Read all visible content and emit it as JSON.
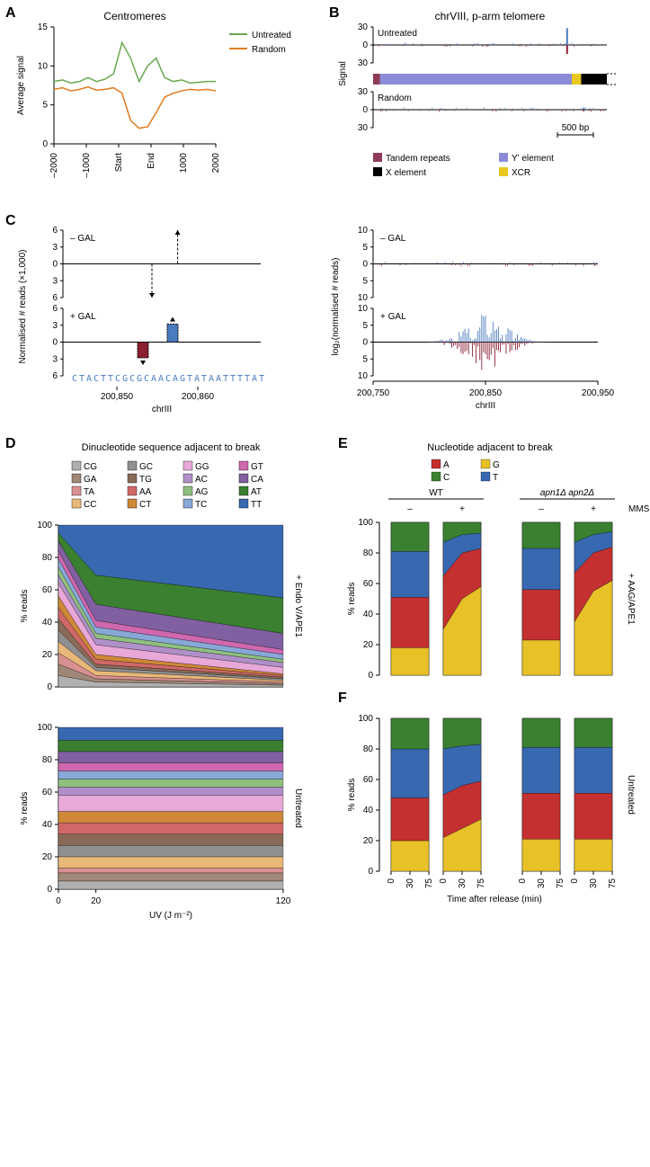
{
  "panelA": {
    "title": "Centromeres",
    "ylabel": "Average signal",
    "xticks": [
      "–2000",
      "–1000",
      "Start",
      "End",
      "1000",
      "2000"
    ],
    "yticks": [
      0,
      5,
      10,
      15
    ],
    "ylim": [
      0,
      15
    ],
    "series": [
      {
        "name": "Untreated",
        "color": "#6aa84f",
        "y": [
          8,
          8.2,
          7.8,
          8,
          8.5,
          8,
          8.3,
          9,
          13,
          11,
          8,
          10,
          11,
          8.5,
          8,
          8.2,
          7.8,
          7.9,
          8,
          8
        ]
      },
      {
        "name": "Random",
        "color": "#e07b1f",
        "y": [
          7,
          7.2,
          6.8,
          7,
          7.3,
          6.9,
          7,
          7.2,
          6.5,
          3,
          2,
          2.2,
          4,
          6,
          6.5,
          6.8,
          7,
          6.9,
          7,
          6.8
        ]
      }
    ]
  },
  "panelB": {
    "title": "chrVIII, p-arm telomere",
    "ylabel": "Signal",
    "yticks": [
      -30,
      0,
      30
    ],
    "tracks": [
      "Untreated",
      "Random"
    ],
    "scalebar": "500 bp",
    "legend": [
      {
        "label": "Tandem repeats",
        "color": "#8e3a5b"
      },
      {
        "label": "Yʹ element",
        "color": "#8b8bd9"
      },
      {
        "label": "X element",
        "color": "#000000"
      },
      {
        "label": "XCR",
        "color": "#e8c81e"
      }
    ],
    "annot_segments": [
      {
        "color": "#8e3a5b",
        "x": 0,
        "w": 0.03
      },
      {
        "color": "#8b8bd9",
        "x": 0.03,
        "w": 0.82
      },
      {
        "color": "#e8c81e",
        "x": 0.85,
        "w": 0.04
      },
      {
        "color": "#000000",
        "x": 0.89,
        "w": 0.11
      }
    ],
    "spikes": {
      "untreated": [
        {
          "x": 0.83,
          "up": 28,
          "down": -15,
          "upc": "#4a7bbf",
          "downc": "#8a2030"
        }
      ],
      "random": [
        {
          "x": 0.9,
          "up": 3,
          "down": -2,
          "upc": "#4a7bbf",
          "downc": "#8a2030"
        }
      ]
    }
  },
  "panelC": {
    "left": {
      "ylabel": "Normalised # reads (×1,000)",
      "xlabel": "chrIII",
      "xticks": [
        "200,850",
        "200,860"
      ],
      "yticks": [
        6,
        3,
        0,
        3,
        6
      ],
      "cond": [
        "– GAL",
        "+ GAL"
      ],
      "seq": "CTACTTCGCGCAACAGTATAATTTTAT",
      "seq_color": "#4a7bbf",
      "gal_bars": {
        "up": [
          {
            "x": 0.55,
            "h": 3.2,
            "c": "#4a7bbf"
          }
        ],
        "down": [
          {
            "x": 0.4,
            "h": 2.8,
            "c": "#8a2030"
          }
        ]
      }
    },
    "right": {
      "ylabel": "log₂(normalised # reads)",
      "xlabel": "chrIII",
      "xticks": [
        "200,750",
        "200,850",
        "200,950"
      ],
      "yticks": [
        10,
        5,
        0,
        5,
        10
      ],
      "cond": [
        "– GAL",
        "+ GAL"
      ]
    }
  },
  "panelD": {
    "title": "Dinucleotide sequence adjacent to break",
    "ylabel": "% reads",
    "xlabel": "UV (J m⁻²)",
    "xticks": [
      0,
      20,
      120
    ],
    "yticks": [
      0,
      20,
      40,
      60,
      80,
      100
    ],
    "conditions": [
      "+ Endo V/APE1",
      "Untreated"
    ],
    "legend": [
      {
        "l": "CG",
        "c": "#b0b0b0"
      },
      {
        "l": "GA",
        "c": "#a08878"
      },
      {
        "l": "TA",
        "c": "#d99090"
      },
      {
        "l": "CC",
        "c": "#e8b878"
      },
      {
        "l": "GC",
        "c": "#909090"
      },
      {
        "l": "TG",
        "c": "#8a6a58"
      },
      {
        "l": "AA",
        "c": "#d06868"
      },
      {
        "l": "CT",
        "c": "#d08838"
      },
      {
        "l": "GG",
        "c": "#e8a8d8"
      },
      {
        "l": "AC",
        "c": "#b090c8"
      },
      {
        "l": "AG",
        "c": "#90c080"
      },
      {
        "l": "TC",
        "c": "#88a8d8"
      },
      {
        "l": "GT",
        "c": "#d068b0"
      },
      {
        "l": "CA",
        "c": "#8060a0"
      },
      {
        "l": "AT",
        "c": "#3a8030"
      },
      {
        "l": "TT",
        "c": "#3868b0"
      }
    ],
    "endo": [
      {
        "x": 0,
        "v": [
          7,
          7,
          7,
          7,
          7,
          7,
          7,
          7,
          8,
          5,
          5,
          5,
          5,
          6,
          5,
          5
        ]
      },
      {
        "x": 20,
        "v": [
          3,
          2,
          2,
          3,
          2,
          2,
          3,
          3,
          6,
          4,
          3,
          4,
          4,
          10,
          18,
          31
        ]
      },
      {
        "x": 120,
        "v": [
          1,
          1,
          1,
          1,
          1,
          1,
          1,
          1,
          4,
          3,
          2,
          3,
          3,
          10,
          22,
          45
        ]
      }
    ],
    "untreated": [
      {
        "x": 0,
        "v": [
          5,
          5,
          3,
          7,
          7,
          7,
          7,
          7,
          10,
          5,
          5,
          5,
          5,
          7,
          7,
          8
        ]
      },
      {
        "x": 20,
        "v": [
          5,
          5,
          3,
          7,
          7,
          7,
          7,
          7,
          10,
          5,
          5,
          5,
          5,
          7,
          7,
          8
        ]
      },
      {
        "x": 120,
        "v": [
          5,
          5,
          3,
          7,
          7,
          7,
          7,
          7,
          10,
          5,
          5,
          5,
          5,
          7,
          7,
          8
        ]
      }
    ]
  },
  "panelE": {
    "title": "Nucleotide adjacent to break",
    "legend": [
      {
        "l": "A",
        "c": "#c43030"
      },
      {
        "l": "G",
        "c": "#e8c028"
      },
      {
        "l": "C",
        "c": "#3a8030"
      },
      {
        "l": "T",
        "c": "#3868b0"
      }
    ],
    "ylabel": "% reads",
    "xlabel": "Time after release (min)",
    "xticks": [
      "0",
      "30",
      "75"
    ],
    "yticks": [
      0,
      20,
      40,
      60,
      80,
      100
    ],
    "groups": [
      "WT",
      "apn1Δ apn2Δ"
    ],
    "mms": [
      "–",
      "+"
    ],
    "mms_label": "MMS",
    "cond_labels": [
      "+ AAG/APE1",
      "Untreated"
    ],
    "aag": {
      "WT": {
        "minus": [
          {
            "G": 18,
            "A": 33,
            "T": 30,
            "C": 19
          },
          {
            "G": 18,
            "A": 33,
            "T": 30,
            "C": 19
          },
          {
            "G": 18,
            "A": 33,
            "T": 30,
            "C": 19
          }
        ],
        "plus": [
          {
            "G": 30,
            "A": 35,
            "T": 22,
            "C": 13
          },
          {
            "G": 50,
            "A": 30,
            "T": 12,
            "C": 8
          },
          {
            "G": 58,
            "A": 25,
            "T": 10,
            "C": 7
          }
        ]
      },
      "apn": {
        "minus": [
          {
            "G": 23,
            "A": 33,
            "T": 27,
            "C": 17
          },
          {
            "G": 23,
            "A": 33,
            "T": 27,
            "C": 17
          },
          {
            "G": 23,
            "A": 33,
            "T": 27,
            "C": 17
          }
        ],
        "plus": [
          {
            "G": 35,
            "A": 32,
            "T": 20,
            "C": 13
          },
          {
            "G": 55,
            "A": 25,
            "T": 12,
            "C": 8
          },
          {
            "G": 62,
            "A": 22,
            "T": 10,
            "C": 6
          }
        ]
      }
    },
    "untr": {
      "WT": {
        "minus": [
          {
            "G": 20,
            "A": 28,
            "T": 32,
            "C": 20
          },
          {
            "G": 20,
            "A": 28,
            "T": 32,
            "C": 20
          },
          {
            "G": 20,
            "A": 28,
            "T": 32,
            "C": 20
          }
        ],
        "plus": [
          {
            "G": 22,
            "A": 28,
            "T": 30,
            "C": 20
          },
          {
            "G": 28,
            "A": 28,
            "T": 26,
            "C": 18
          },
          {
            "G": 34,
            "A": 25,
            "T": 24,
            "C": 17
          }
        ]
      },
      "apn": {
        "minus": [
          {
            "G": 21,
            "A": 30,
            "T": 30,
            "C": 19
          },
          {
            "G": 21,
            "A": 30,
            "T": 30,
            "C": 19
          },
          {
            "G": 21,
            "A": 30,
            "T": 30,
            "C": 19
          }
        ],
        "plus": [
          {
            "G": 21,
            "A": 30,
            "T": 30,
            "C": 19
          },
          {
            "G": 21,
            "A": 30,
            "T": 30,
            "C": 19
          },
          {
            "G": 21,
            "A": 30,
            "T": 30,
            "C": 19
          }
        ]
      }
    }
  }
}
